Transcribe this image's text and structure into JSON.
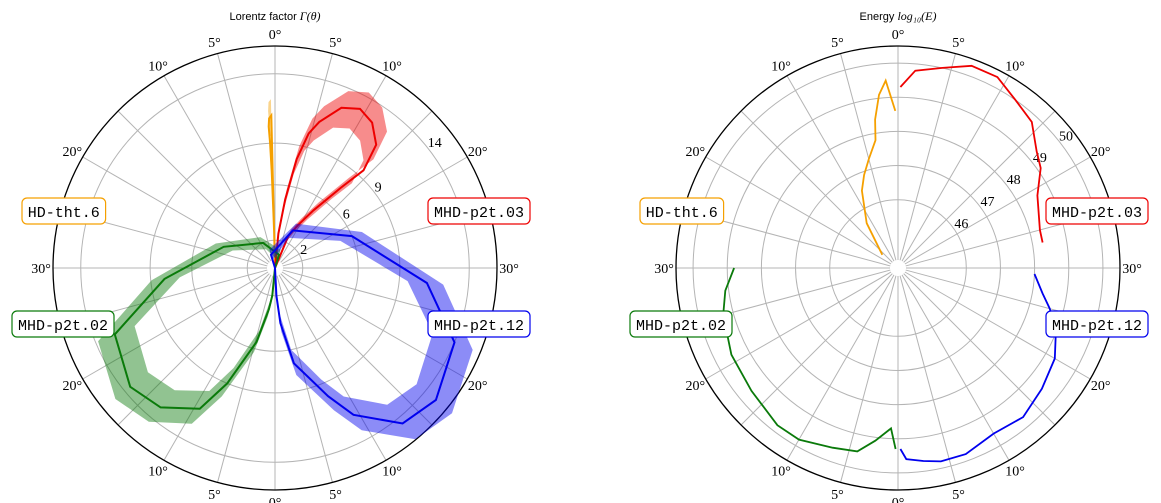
{
  "colors": {
    "HD-tht.6": "#f5a000",
    "MHD-p2t.03": "#ee0000",
    "MHD-p2t.02": "#0a7a0a",
    "MHD-p2t.12": "#0000ee",
    "frame": "#000000",
    "grid": "#b4b4b4"
  },
  "chart_data": [
    {
      "type": "polar-line",
      "title_prefix": "Lorentz factor ",
      "title_math": "Γ(θ)",
      "angle_unit": "degrees from axis",
      "angle_ticks": [
        "0°",
        "5°",
        "10°",
        "20°",
        "30°"
      ],
      "radial_axis": {
        "type": "linear",
        "range": [
          0,
          16
        ],
        "tick_values": [
          2,
          6,
          9,
          14
        ],
        "tick_labels": [
          "2",
          "6",
          "9",
          "14"
        ]
      },
      "grid": true,
      "series": [
        {
          "name": "HD-tht.6",
          "quadrant": "upper-left",
          "band": true,
          "points": [
            [
              0.3,
              1.5
            ],
            [
              0.6,
              4
            ],
            [
              0.7,
              7
            ],
            [
              0.8,
              9
            ],
            [
              0.9,
              10.2
            ],
            [
              0.8,
              10.8
            ],
            [
              0.5,
              11
            ]
          ]
        },
        {
          "name": "MHD-p2t.03",
          "quadrant": "upper-right",
          "band": true,
          "points": [
            [
              2,
              2.5
            ],
            [
              3,
              5
            ],
            [
              4,
              8
            ],
            [
              5,
              10
            ],
            [
              6,
              11
            ],
            [
              8,
              12.5
            ],
            [
              10,
              13
            ],
            [
              12,
              12.6
            ],
            [
              14,
              11.5
            ],
            [
              15,
              9.5
            ],
            [
              14,
              7.5
            ],
            [
              12,
              5
            ],
            [
              10,
              3.5
            ],
            [
              8,
              2.5
            ]
          ]
        },
        {
          "name": "MHD-p2t.02",
          "quadrant": "lower-left",
          "band": true,
          "points": [
            [
              2,
              2
            ],
            [
              3,
              3
            ],
            [
              5,
              5.5
            ],
            [
              8,
              9
            ],
            [
              10,
              11.5
            ],
            [
              14,
              13
            ],
            [
              18,
              13.5
            ],
            [
              24,
              12.5
            ],
            [
              30,
              8
            ],
            [
              40,
              4
            ],
            [
              55,
              2
            ],
            [
              70,
              1
            ]
          ]
        },
        {
          "name": "MHD-p2t.12",
          "quadrant": "lower-right",
          "band": true,
          "points": [
            [
              1,
              2
            ],
            [
              2,
              4
            ],
            [
              4,
              7
            ],
            [
              8,
              10
            ],
            [
              10,
              12
            ],
            [
              14,
              14.5
            ],
            [
              18,
              15
            ],
            [
              24,
              14
            ],
            [
              30,
              11
            ],
            [
              40,
              6
            ],
            [
              55,
              3
            ],
            [
              70,
              1
            ]
          ]
        }
      ]
    },
    {
      "type": "polar-line",
      "title_prefix": "Energy ",
      "title_math": "log₁₀(E)",
      "angle_unit": "degrees from axis",
      "angle_ticks": [
        "0°",
        "5°",
        "10°",
        "20°",
        "30°"
      ],
      "radial_axis": {
        "type": "linear",
        "range": [
          44,
          50.5
        ],
        "tick_values": [
          46,
          47,
          48,
          49,
          50
        ],
        "tick_labels": [
          "46",
          "47",
          "48",
          "49",
          "50"
        ]
      },
      "grid": true,
      "series": [
        {
          "name": "HD-tht.6",
          "quadrant": "upper-left",
          "points": [
            [
              0.4,
              48.6
            ],
            [
              1.5,
              49.5
            ],
            [
              2.5,
              49.1
            ],
            [
              3.5,
              48.4
            ],
            [
              4,
              47.8
            ],
            [
              6,
              47.3
            ],
            [
              8,
              46.9
            ],
            [
              10,
              46.5
            ],
            [
              14,
              45.6
            ],
            [
              20,
              44.6
            ]
          ]
        },
        {
          "name": "MHD-p2t.03",
          "quadrant": "upper-right",
          "points": [
            [
              0.3,
              49.3
            ],
            [
              2,
              49.8
            ],
            [
              5,
              50
            ],
            [
              8,
              50.3
            ],
            [
              11,
              50.3
            ],
            [
              14,
              50
            ],
            [
              17,
              49.8
            ],
            [
              20,
              49.3
            ],
            [
              22,
              49.1
            ],
            [
              25,
              48.6
            ],
            [
              30,
              48.3
            ],
            [
              32,
              48.3
            ]
          ]
        },
        {
          "name": "MHD-p2t.02",
          "quadrant": "lower-left",
          "points": [
            [
              0.3,
              49.3
            ],
            [
              1,
              48.7
            ],
            [
              3,
              49.1
            ],
            [
              5,
              49.5
            ],
            [
              8,
              49.6
            ],
            [
              12,
              49.8
            ],
            [
              15,
              49.8
            ],
            [
              20,
              49.6
            ],
            [
              25,
              49.5
            ],
            [
              30,
              49.3
            ],
            [
              33,
              49.1
            ],
            [
              36,
              48.8
            ]
          ]
        },
        {
          "name": "MHD-p2t.12",
          "quadrant": "lower-right",
          "points": [
            [
              0.3,
              49.3
            ],
            [
              1,
              49.6
            ],
            [
              3,
              49.7
            ],
            [
              5,
              49.8
            ],
            [
              8,
              49.8
            ],
            [
              12,
              49.6
            ],
            [
              16,
              49.7
            ],
            [
              20,
              49.5
            ],
            [
              24,
              49.3
            ],
            [
              27,
              49.0
            ],
            [
              30,
              48.6
            ],
            [
              32,
              48.3
            ],
            [
              35,
              48.0
            ]
          ]
        }
      ]
    }
  ]
}
